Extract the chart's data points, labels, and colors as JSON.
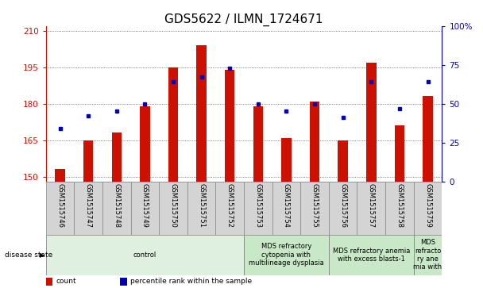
{
  "title": "GDS5622 / ILMN_1724671",
  "samples": [
    "GSM1515746",
    "GSM1515747",
    "GSM1515748",
    "GSM1515749",
    "GSM1515750",
    "GSM1515751",
    "GSM1515752",
    "GSM1515753",
    "GSM1515754",
    "GSM1515755",
    "GSM1515756",
    "GSM1515757",
    "GSM1515758",
    "GSM1515759"
  ],
  "counts": [
    153,
    165,
    168,
    179,
    195,
    204,
    194,
    179,
    166,
    181,
    165,
    197,
    171,
    183
  ],
  "percentile_ranks": [
    34,
    42,
    45,
    50,
    64,
    67,
    73,
    50,
    45,
    50,
    41,
    64,
    47,
    64
  ],
  "ylim_left": [
    148,
    212
  ],
  "ylim_right": [
    0,
    100
  ],
  "yticks_left": [
    150,
    165,
    180,
    195,
    210
  ],
  "yticks_right": [
    0,
    25,
    50,
    75,
    100
  ],
  "bar_color": "#cc1100",
  "dot_color": "#0000bb",
  "bar_bottom": 148,
  "bar_width": 0.35,
  "disease_groups": [
    {
      "label": "control",
      "start": 0,
      "end": 7,
      "color": "#e0f0e0"
    },
    {
      "label": "MDS refractory\ncytopenia with\nmultilineage dysplasia",
      "start": 7,
      "end": 10,
      "color": "#c8e8c8"
    },
    {
      "label": "MDS refractory anemia\nwith excess blasts-1",
      "start": 10,
      "end": 13,
      "color": "#c8e8c8"
    },
    {
      "label": "MDS\nrefracto\nry ane\nmia with",
      "start": 13,
      "end": 14,
      "color": "#c8e8c8"
    }
  ],
  "disease_state_label": "disease state",
  "legend_items": [
    {
      "label": "count",
      "color": "#cc1100"
    },
    {
      "label": "percentile rank within the sample",
      "color": "#0000bb"
    }
  ],
  "bg_color": "#ffffff",
  "grid_color": "#555555",
  "tick_color_left": "#cc1100",
  "tick_color_right": "#0000bb",
  "title_fontsize": 11,
  "tick_fontsize": 7.5,
  "xlabel_fontsize": 6,
  "disease_fontsize": 6,
  "legend_fontsize": 6.5,
  "xlim": [
    -0.5,
    13.5
  ],
  "xticklabel_bg": "#d4d4d4"
}
